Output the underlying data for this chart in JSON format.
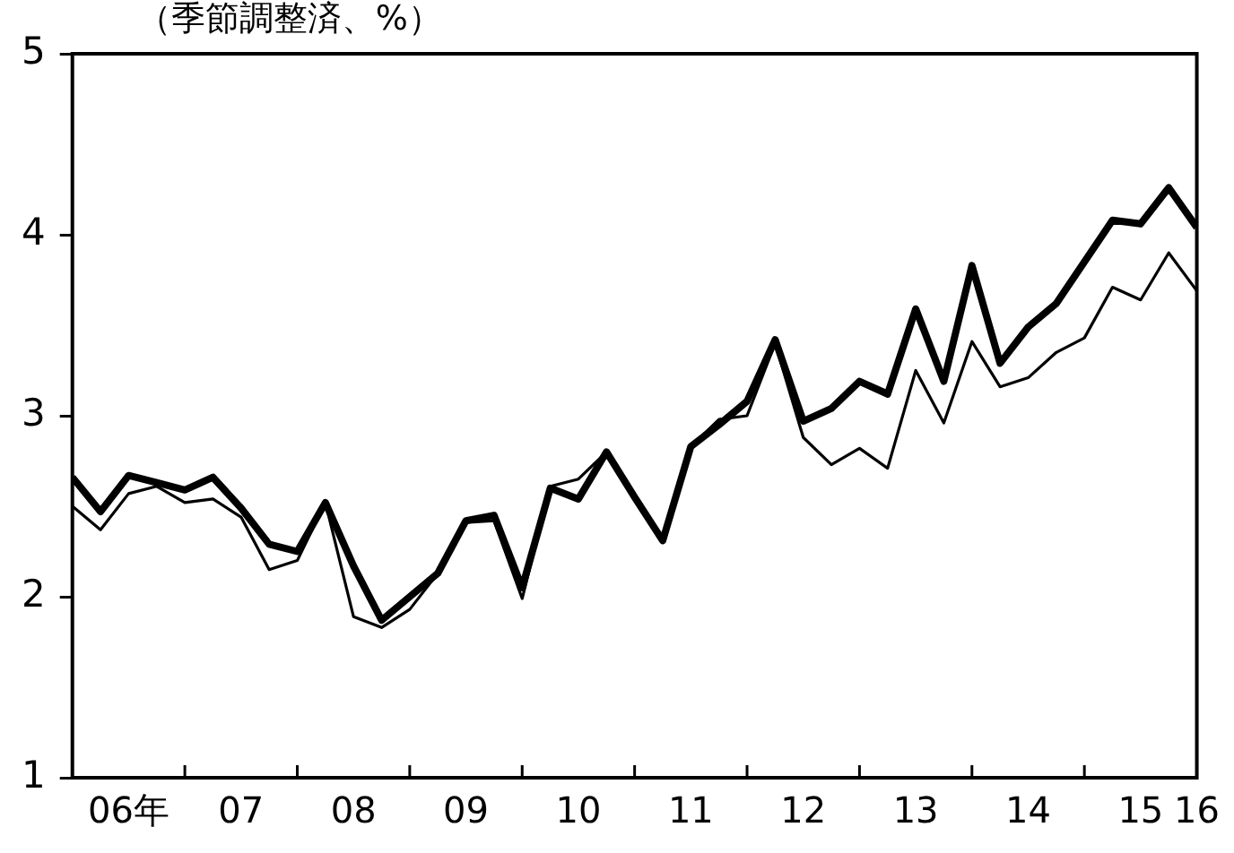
{
  "chart_data": {
    "type": "line",
    "title": "（季節調整済、%）",
    "categories": [
      null,
      null,
      "06年",
      null,
      null,
      null,
      "07",
      null,
      null,
      null,
      "08",
      null,
      null,
      null,
      "09",
      null,
      null,
      null,
      "10",
      null,
      null,
      null,
      "11",
      null,
      null,
      null,
      "12",
      null,
      null,
      null,
      "13",
      null,
      null,
      null,
      "14",
      null,
      null,
      null,
      "15",
      null,
      "16"
    ],
    "series": [
      {
        "color": "#000000",
        "values": [
          2.66,
          2.47,
          2.67,
          2.63,
          2.59,
          2.66,
          2.49,
          2.29,
          2.25,
          2.52,
          2.17,
          1.87,
          2.0,
          2.13,
          2.42,
          2.45,
          2.05,
          2.6,
          2.54,
          2.8,
          2.55,
          2.31,
          2.83,
          2.95,
          3.08,
          3.42,
          2.97,
          3.04,
          3.19,
          3.12,
          3.59,
          3.19,
          3.83,
          3.29,
          3.49,
          3.62,
          3.85,
          4.08,
          4.06,
          4.26,
          4.04
        ]
      },
      {
        "color": "#000000",
        "values": [
          2.5,
          2.37,
          2.57,
          2.61,
          2.52,
          2.54,
          2.44,
          2.15,
          2.2,
          2.52,
          1.89,
          1.83,
          1.93,
          2.13,
          2.41,
          2.42,
          1.99,
          2.61,
          2.65,
          2.8,
          2.55,
          2.31,
          2.83,
          2.98,
          3.0,
          3.4,
          2.88,
          2.73,
          2.82,
          2.71,
          3.25,
          2.96,
          3.41,
          3.16,
          3.21,
          3.35,
          3.43,
          3.71,
          3.64,
          3.9,
          3.69
        ]
      }
    ],
    "ylim": [
      1,
      5
    ],
    "yticks": [
      1,
      2,
      3,
      4,
      5
    ],
    "grid": false,
    "legend": false,
    "marker": "none",
    "line_style": "solid"
  }
}
